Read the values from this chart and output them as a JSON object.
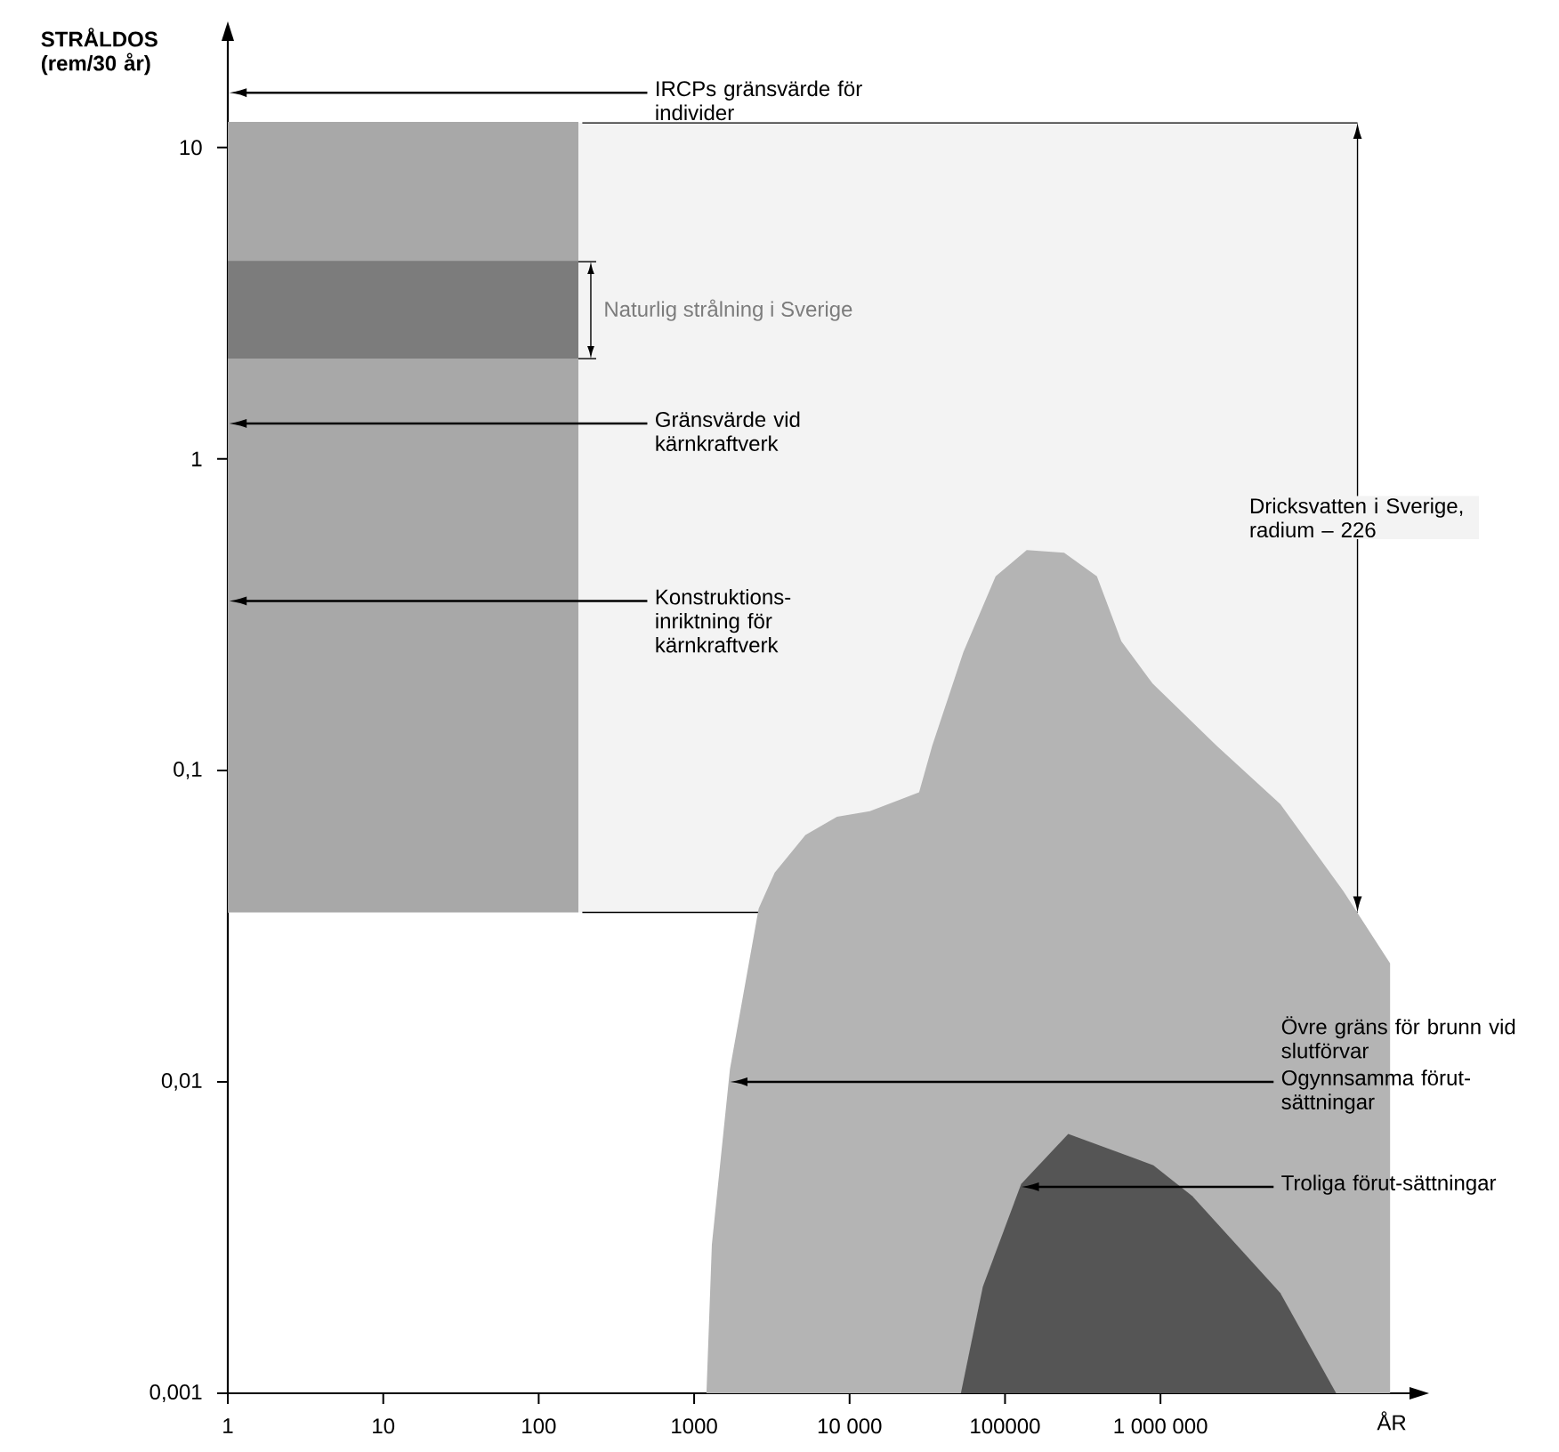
{
  "chart_data": {
    "type": "area",
    "xlabel": "ÅR",
    "ylabel": "STRÅLDOS (rem/30 år)",
    "log": "xy",
    "xlim": [
      1,
      40000000
    ],
    "ylim": [
      0.001,
      22
    ],
    "xticks": [
      1,
      10,
      100,
      1000,
      {
        "value": 10000,
        "label": "10 000"
      },
      100000,
      {
        "value": 1000000,
        "label": "1 000 000"
      }
    ],
    "yticks": [
      {
        "value": 0.001,
        "label": "0,001"
      },
      {
        "value": 0.01,
        "label": "0,01"
      },
      {
        "value": 0.1,
        "label": "0,1"
      },
      1,
      10
    ],
    "series": [
      {
        "type": "line",
        "color": "#a8a8a8",
        "x": [
          1,
          180
        ],
        "values": [
          12,
          12
        ],
        "upper": [
          12,
          12
        ],
        "lower": [
          0.035,
          0.035
        ]
      },
      {
        "type": "line",
        "name": "Naturlig strålning i Sverige",
        "color": "#7c7c7c",
        "x": [
          1,
          180
        ],
        "values": [
          4.3,
          4.3
        ],
        "upper": [
          4.3,
          4.3
        ],
        "lower": [
          2.1,
          2.1
        ]
      },
      {
        "color": "#b4b4b4",
        "x": [
          1200,
          1300,
          1700,
          2600,
          3300,
          5200,
          8300,
          13500,
          28000,
          34000,
          54000,
          87000,
          138000,
          240000,
          390000,
          560000,
          890000,
          2300000,
          5900000,
          15000000,
          30000000
        ],
        "values": [
          0.001,
          0.003,
          0.011,
          0.036,
          0.047,
          0.062,
          0.071,
          0.074,
          0.085,
          0.12,
          0.24,
          0.42,
          0.51,
          0.5,
          0.42,
          0.26,
          0.19,
          0.12,
          0.078,
          0.041,
          0.024
        ]
      },
      {
        "color": "#555555",
        "x": [
          52000,
          72000,
          127000,
          255000,
          900000,
          1600000,
          5900000,
          13500000
        ],
        "values": [
          0.001,
          0.0022,
          0.0047,
          0.0068,
          0.0054,
          0.0043,
          0.0021,
          0.001
        ]
      }
    ],
    "bands": [
      {
        "axis": "y",
        "from": 0.035,
        "to": 12,
        "label": "Dricksvatten i Sverige, radium – 226",
        "color": "#f3f3f3"
      }
    ],
    "ref_lines": [
      {
        "axis": "y",
        "value": 15,
        "label": "IRCPs gränsvärde för individer"
      },
      {
        "axis": "y",
        "value": 1.3,
        "label": "Gränsvärde vid kärnkraftverk"
      },
      {
        "axis": "y",
        "value": 0.35,
        "label": "Konstruktions-inriktning för kärnkraftverk"
      },
      {
        "axis": "y",
        "value": 0.01,
        "label": "Ogynnsamma förut-sättningar"
      },
      {
        "axis": "y",
        "value": 0.0046,
        "label": "Troliga förut-sättningar"
      }
    ],
    "annotations": [
      "Övre gräns för brunn vid slutförvar"
    ]
  }
}
